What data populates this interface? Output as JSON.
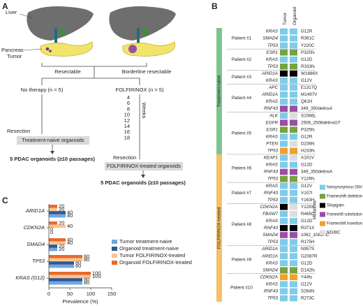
{
  "panel_a": {
    "label": "A",
    "liver": "Liver",
    "pancreas": "Pancreas",
    "tumor": "Tumor",
    "resectable": "Resectable",
    "borderline": "Borderline resectable",
    "arm_left": "No therapy (n = 5)",
    "arm_right": "FOLFIRINOX (n = 5)",
    "weeks_label": "Weeks",
    "weeks": [
      4,
      6,
      8,
      10,
      12,
      14,
      16,
      18
    ],
    "resection_left": "Resection",
    "box_left": "Treatment-naive organoids",
    "result_left": "5 PDAC organoids (≥10 passages)",
    "resection_right": "Resection",
    "box_right": "FOLFIRINOX-treated organoids",
    "result_right": "5 PDAC organoids (≥10 passages)"
  },
  "panel_b": {
    "label": "B",
    "columns": [
      "Tumor",
      "Organoid"
    ],
    "groups": [
      {
        "label": "Treatment-naive",
        "color": "#7cc48f"
      },
      {
        "label": "FOLFIRINOX-treated",
        "color": "#f5c06a"
      }
    ],
    "patients": [
      {
        "label": "Patient #1",
        "group": 0,
        "genes": [
          {
            "gene": "KRAS",
            "tumor": 0,
            "organoid": 0,
            "mutation": "G12R"
          },
          {
            "gene": "SMAD4",
            "tumor": 0,
            "organoid": 0,
            "mutation": "R361C"
          },
          {
            "gene": "TP53",
            "tumor": 0,
            "organoid": 0,
            "mutation": "Y220C"
          }
        ]
      },
      {
        "label": "Patient #2",
        "group": 0,
        "genes": [
          {
            "gene": "ESR1",
            "tumor": 1,
            "organoid": 1,
            "mutation": "P325fs"
          },
          {
            "gene": "KRAS",
            "tumor": 0,
            "organoid": 0,
            "mutation": "G12D"
          },
          {
            "gene": "TP53",
            "tumor": 1,
            "organoid": 1,
            "mutation": "R333fs"
          }
        ]
      },
      {
        "label": "Patient #3",
        "group": 0,
        "genes": [
          {
            "gene": "ARID1A",
            "tumor": 2,
            "organoid": 2,
            "mutation": "W1686X"
          },
          {
            "gene": "KRAS",
            "tumor": 0,
            "organoid": 0,
            "mutation": "G12V"
          }
        ]
      },
      {
        "label": "Patient #4",
        "group": 0,
        "genes": [
          {
            "gene": "APC",
            "tumor": 0,
            "organoid": 0,
            "mutation": "E1317Q"
          },
          {
            "gene": "ARID1A",
            "tumor": 0,
            "organoid": 0,
            "mutation": "M1497V"
          },
          {
            "gene": "KRAS",
            "tumor": 0,
            "organoid": 0,
            "mutation": "Q61H"
          },
          {
            "gene": "RNF43",
            "tumor": 3,
            "organoid": 3,
            "mutation": "349_350delinsA"
          }
        ]
      },
      {
        "label": "Patient #5",
        "group": 0,
        "genes": [
          {
            "gene": "ALK",
            "tumor": 0,
            "organoid": 5,
            "mutation": "S1086L"
          },
          {
            "gene": "EGFR",
            "tumor": 3,
            "organoid": 3,
            "mutation": "2506_2508delinsGT"
          },
          {
            "gene": "ESR1",
            "tumor": 1,
            "organoid": 1,
            "mutation": "P325fs"
          },
          {
            "gene": "KRAS",
            "tumor": 0,
            "organoid": 0,
            "mutation": "G12R"
          },
          {
            "gene": "PTEN",
            "tumor": 0,
            "organoid": 5,
            "mutation": "D236N"
          },
          {
            "gene": "TP53",
            "tumor": 4,
            "organoid": 4,
            "mutation": "H233fs"
          }
        ]
      },
      {
        "label": "Patient #6",
        "group": 1,
        "genes": [
          {
            "gene": "KEAP1",
            "tumor": 0,
            "organoid": 5,
            "mutation": "A101V"
          },
          {
            "gene": "KRAS",
            "tumor": 0,
            "organoid": 0,
            "mutation": "G12D"
          },
          {
            "gene": "RNF43",
            "tumor": 3,
            "organoid": 3,
            "mutation": "349_350delinsA"
          },
          {
            "gene": "TP53",
            "tumor": 1,
            "organoid": 1,
            "mutation": "Y126fs"
          }
        ]
      },
      {
        "label": "Patient #7",
        "group": 1,
        "genes": [
          {
            "gene": "KRAS",
            "tumor": 0,
            "organoid": 0,
            "mutation": "G12V"
          },
          {
            "gene": "RNF43",
            "tumor": 0,
            "organoid": 0,
            "mutation": "V107I"
          },
          {
            "gene": "TP53",
            "tumor": 0,
            "organoid": 0,
            "mutation": "Y163H"
          }
        ]
      },
      {
        "label": "Patient #8",
        "group": 1,
        "genes": [
          {
            "gene": "CDKN2A",
            "tumor": 2,
            "organoid": 5,
            "mutation": "Y129X"
          },
          {
            "gene": "FBXW7",
            "tumor": 0,
            "organoid": 5,
            "mutation": "R465C"
          },
          {
            "gene": "KRAS",
            "tumor": 0,
            "organoid": 0,
            "mutation": "G12D"
          },
          {
            "gene": "RNF43",
            "tumor": 2,
            "organoid": 2,
            "mutation": "R371X"
          },
          {
            "gene": "SMAD4",
            "tumor": 3,
            "organoid": 3,
            "mutation": "1082_1083AC"
          },
          {
            "gene": "TP53",
            "tumor": 0,
            "organoid": 0,
            "mutation": "R175H"
          }
        ]
      },
      {
        "label": "Patient #9",
        "group": 1,
        "genes": [
          {
            "gene": "ARID1A",
            "tumor": 0,
            "organoid": 0,
            "mutation": "N957S"
          },
          {
            "gene": "ARID1A",
            "tumor": 0,
            "organoid": 0,
            "mutation": "G2087R"
          },
          {
            "gene": "KRAS",
            "tumor": 0,
            "organoid": 0,
            "mutation": "G12D"
          },
          {
            "gene": "SMAD4",
            "tumor": 1,
            "organoid": 1,
            "mutation": "D142fs"
          }
        ]
      },
      {
        "label": "Patient #10",
        "group": 1,
        "genes": [
          {
            "gene": "CDKN2A",
            "tumor": 4,
            "organoid": 4,
            "mutation": "Y44fs"
          },
          {
            "gene": "KRAS",
            "tumor": 0,
            "organoid": 0,
            "mutation": "G12V"
          },
          {
            "gene": "RNF43",
            "tumor": 0,
            "organoid": 0,
            "mutation": "S264N"
          },
          {
            "gene": "TP53",
            "tumor": 0,
            "organoid": 0,
            "mutation": "R273C"
          }
        ]
      }
    ],
    "legend": {
      "title": "Mutations",
      "items": [
        {
          "label": "Nonsynonymous SNV",
          "color": "#7fcbe8"
        },
        {
          "label": "Frameshift deletion",
          "color": "#76a240"
        },
        {
          "label": "Stopgain",
          "color": "#000000"
        },
        {
          "label": "Frameshift substitution",
          "color": "#9a4ea6"
        },
        {
          "label": "Frameshift insertion",
          "color": "#f0a030"
        },
        {
          "label": "ND/BC",
          "color": "#dddddd"
        }
      ]
    }
  },
  "panel_c": {
    "label": "C"
  },
  "chart_data": {
    "type": "bar",
    "orientation": "horizontal",
    "categories": [
      "ARID1A",
      "CDKN2A",
      "SMAD4",
      "TP53",
      "KRAS (G12)"
    ],
    "series": [
      {
        "name": "Tumor treatment-naive",
        "color": "#6fa8dc",
        "values": [
          40,
          0,
          20,
          60,
          80
        ]
      },
      {
        "name": "Organoid treatment-naive",
        "color": "#2f5597",
        "values": [
          40,
          0,
          20,
          60,
          80
        ]
      },
      {
        "name": "Tumor FOLFIRINOX-treated",
        "color": "#f9c58d",
        "values": [
          20,
          40,
          40,
          80,
          100
        ]
      },
      {
        "name": "Organoid FOLFIRINOX-treated",
        "color": "#e8692c",
        "values": [
          20,
          20,
          40,
          80,
          100
        ]
      }
    ],
    "xlabel": "Prevalence (%)",
    "xlim": [
      0,
      150
    ],
    "xticks": [
      0,
      50,
      100,
      150
    ],
    "legend": "right"
  }
}
